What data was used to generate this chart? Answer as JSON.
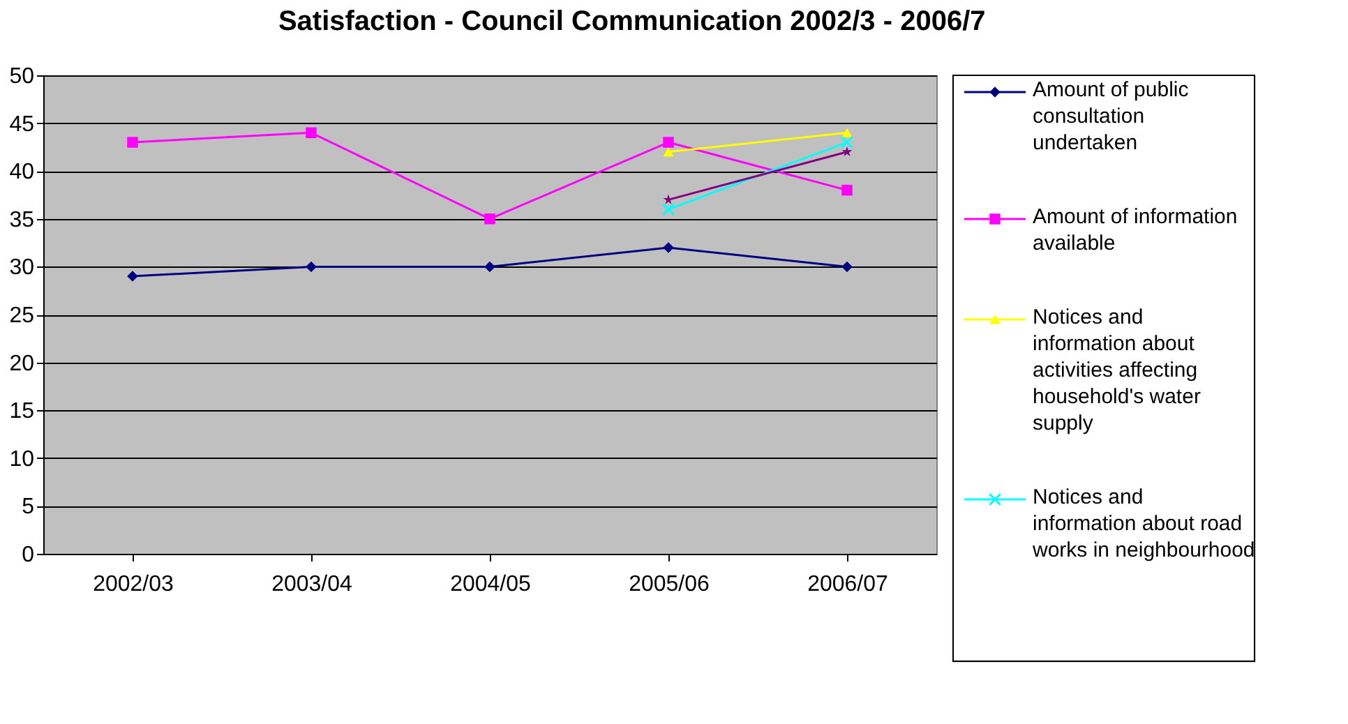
{
  "chart_data": {
    "type": "line",
    "title": "Satisfaction - Council Communication 2002/3 - 2006/7",
    "categories": [
      "2002/03",
      "2003/04",
      "2004/05",
      "2005/06",
      "2006/07"
    ],
    "series": [
      {
        "name": "Amount of public consultation undertaken",
        "color": "#000080",
        "marker": "diamond",
        "values": [
          29,
          30,
          30,
          32,
          30
        ]
      },
      {
        "name": "Amount of information available",
        "color": "#ff00ff",
        "marker": "square",
        "values": [
          43,
          44,
          35,
          43,
          38
        ]
      },
      {
        "name": "Notices and information about activities affecting household's water supply",
        "color": "#ffff00",
        "marker": "triangle",
        "values": [
          null,
          null,
          null,
          42,
          44
        ]
      },
      {
        "name": "Notices and information about road works in neighbourhood",
        "color": "#00ffff",
        "marker": "cross",
        "values": [
          null,
          null,
          null,
          36,
          43
        ]
      },
      {
        "color": "#800080",
        "marker": "star",
        "values": [
          null,
          null,
          null,
          37,
          42
        ]
      }
    ],
    "ylim": [
      0,
      50
    ],
    "yticks": [
      0,
      5,
      10,
      15,
      20,
      25,
      30,
      35,
      40,
      45,
      50
    ],
    "grid": "y",
    "legend": "right"
  }
}
